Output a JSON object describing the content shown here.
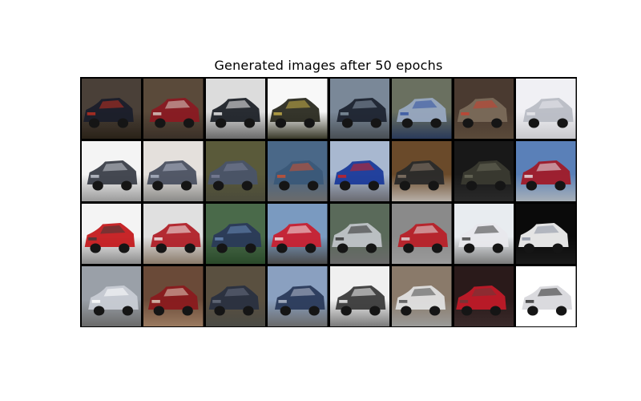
{
  "figure": {
    "title": "Generated images after 50 epochs"
  },
  "grid": {
    "rows": 4,
    "cols": 8,
    "tiles": [
      {
        "bg": "#4a4038",
        "ground": "#2a2218",
        "car": "#1a1e2a",
        "accent": "#c03020"
      },
      {
        "bg": "#5a4a3a",
        "ground": "#3a3028",
        "car": "#8a1a22",
        "accent": "#d8d0c8"
      },
      {
        "bg": "#dcdcdc",
        "ground": "#6a6a6a",
        "car": "#1e2228",
        "accent": "#f4f4f4"
      },
      {
        "bg": "#f8f8f8",
        "ground": "#3a3a2a",
        "car": "#2a2a20",
        "accent": "#c8b048"
      },
      {
        "bg": "#7a8898",
        "ground": "#484e54",
        "car": "#1e2430",
        "accent": "#8898a8"
      },
      {
        "bg": "#6a7060",
        "ground": "#2a3a5a",
        "car": "#98a8c0",
        "accent": "#3050a0"
      },
      {
        "bg": "#4a3a30",
        "ground": "#5a4a3a",
        "car": "#7a6a5a",
        "accent": "#c84030"
      },
      {
        "bg": "#f0f0f4",
        "ground": "#c8c8cc",
        "car": "#b8bcc4",
        "accent": "#e8e8ec"
      },
      {
        "bg": "#f4f4f4",
        "ground": "#9a9a9a",
        "car": "#3a3e48",
        "accent": "#c8ccd4"
      },
      {
        "bg": "#e4e0dc",
        "ground": "#8a8a88",
        "car": "#4a5060",
        "accent": "#b0b8c8"
      },
      {
        "bg": "#5a5a3a",
        "ground": "#4a4a3a",
        "car": "#4a5468",
        "accent": "#7a8098"
      },
      {
        "bg": "#4a6888",
        "ground": "#6a6a6a",
        "car": "#3a5878",
        "accent": "#d05030"
      },
      {
        "bg": "#a8b8d0",
        "ground": "#6a6a70",
        "car": "#1a3a9a",
        "accent": "#d02020"
      },
      {
        "bg": "#6a4a2a",
        "ground": "#b8b0a8",
        "car": "#2a2a2a",
        "accent": "#8a7a6a"
      },
      {
        "bg": "#181818",
        "ground": "#2a2a2a",
        "car": "#3a3a30",
        "accent": "#6a6a5a"
      },
      {
        "bg": "#5a80b8",
        "ground": "#a8b0b8",
        "car": "#a01a28",
        "accent": "#e8e8ec"
      },
      {
        "bg": "#f4f4f4",
        "ground": "#8a8a8a",
        "car": "#c41a1e",
        "accent": "#3a3a3a"
      },
      {
        "bg": "#e0e0e0",
        "ground": "#8a7a6a",
        "car": "#b02028",
        "accent": "#f0f0f0"
      },
      {
        "bg": "#4a6a4a",
        "ground": "#2a4a2a",
        "car": "#2a3a58",
        "accent": "#6a8ab8"
      },
      {
        "bg": "#7a9ac0",
        "ground": "#4a4a4a",
        "car": "#c82030",
        "accent": "#f0e8e8"
      },
      {
        "bg": "#5a6a5a",
        "ground": "#6a6a6a",
        "car": "#c0c4c8",
        "accent": "#2a2a2a"
      },
      {
        "bg": "#8a8a8a",
        "ground": "#9a9a9a",
        "car": "#b82028",
        "accent": "#e0e0e0"
      },
      {
        "bg": "#e8ecf0",
        "ground": "#7a7a7a",
        "car": "#e8e8ec",
        "accent": "#3a3a3a"
      },
      {
        "bg": "#0a0a0a",
        "ground": "#1a1a1a",
        "car": "#f0f0f0",
        "accent": "#8890a0"
      },
      {
        "bg": "#9aa0a8",
        "ground": "#6a6a6a",
        "car": "#c8ccd4",
        "accent": "#ffffff"
      },
      {
        "bg": "#6a4a38",
        "ground": "#9a7a60",
        "car": "#8a1a1e",
        "accent": "#e0d0c0"
      },
      {
        "bg": "#5a5040",
        "ground": "#4a4a44",
        "car": "#2a3040",
        "accent": "#6a7080"
      },
      {
        "bg": "#8aa0c0",
        "ground": "#6a6a6a",
        "car": "#2a3a5a",
        "accent": "#b8c0d0"
      },
      {
        "bg": "#f0f0f0",
        "ground": "#7a7a7a",
        "car": "#3a3a3a",
        "accent": "#f8f8f8"
      },
      {
        "bg": "#8a7a6a",
        "ground": "#9a9a98",
        "car": "#e0e0e0",
        "accent": "#4a4a4a"
      },
      {
        "bg": "#2a1a1a",
        "ground": "#3a2a2a",
        "car": "#c01a28",
        "accent": "#6a3a3a"
      },
      {
        "bg": "#ffffff",
        "ground": "#ffffff",
        "car": "#d8d8dc",
        "accent": "#2a2a2a"
      }
    ]
  }
}
